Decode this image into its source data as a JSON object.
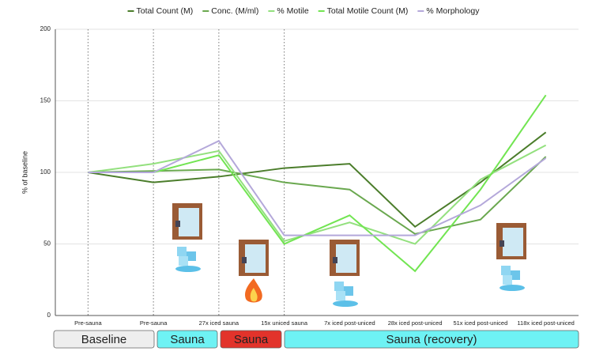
{
  "chart_data": {
    "type": "line",
    "y_label": "% of baseline",
    "categories": [
      "Pre-sauna",
      "Pre-sauna",
      "27x iced sauna",
      "15x uniced sauna",
      "7x iced post-uniced",
      "28x iced post-uniced",
      "51x iced post-uniced",
      "118x iced post-uniced"
    ],
    "series": [
      {
        "name": "Total Count (M)",
        "color": "#4b7d2b",
        "values": [
          100,
          93,
          97,
          103,
          106,
          62,
          93,
          128
        ]
      },
      {
        "name": "Conc. (M/ml)",
        "color": "#6aa84f",
        "values": [
          100,
          101,
          102,
          93,
          88,
          57,
          67,
          111
        ]
      },
      {
        "name": "% Motile",
        "color": "#93e07e",
        "values": [
          100,
          106,
          115,
          52,
          65,
          50,
          95,
          119
        ]
      },
      {
        "name": "Total Motile Count (M)",
        "color": "#72e552",
        "values": [
          100,
          100,
          112,
          50,
          70,
          31,
          88,
          154
        ]
      },
      {
        "name": "% Morphology",
        "color": "#b4a8da",
        "values": [
          100,
          100,
          122,
          56,
          56,
          56,
          77,
          110
        ]
      }
    ],
    "ylim": [
      0,
      200
    ],
    "yticks": [
      0,
      50,
      100,
      150,
      200
    ],
    "grid": true
  },
  "phases": [
    {
      "label": "Baseline",
      "color": "#eeeeee"
    },
    {
      "label": "Sauna",
      "color": "#6ef2f4"
    },
    {
      "label": "Sauna",
      "color": "#e2332b"
    },
    {
      "label": "Sauna (recovery)",
      "color": "#6ef2f4"
    }
  ]
}
